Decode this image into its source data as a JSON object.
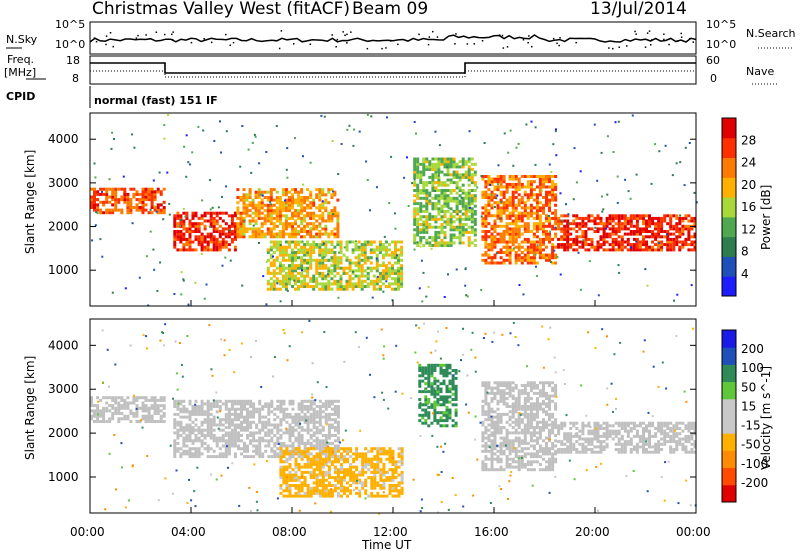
{
  "header": {
    "station": "Christmas Valley West (fitACF)",
    "beam": "Beam 09",
    "date": "13/Jul/2014"
  },
  "strip_labels": {
    "nsky": "N.Sky",
    "nsearch": "N.Search",
    "freq_line1": "Freq.",
    "freq_line2": "[MHz]",
    "nave": "Nave",
    "cpid": "CPID",
    "cpid_value": "normal (fast) 151 IF",
    "noise_ticks_left": [
      "10^5",
      "10^0"
    ],
    "noise_ticks_right": [
      "10^5",
      "10^0"
    ],
    "freq_ticks": [
      "18",
      "8"
    ],
    "nave_ticks": [
      "60",
      "0"
    ]
  },
  "colors": {
    "power_scale": [
      "#1c1cff",
      "#1f4fb8",
      "#2e7d4f",
      "#4fa84f",
      "#a8d83a",
      "#ffb000",
      "#ff7a00",
      "#ff3000",
      "#e00000"
    ],
    "velocity_scale": [
      "#1a1ae6",
      "#1f4fb8",
      "#2e8b57",
      "#5fc83a",
      "#c8c8c8",
      "#c8c8c8",
      "#ffb000",
      "#ff8c00",
      "#ff4a00",
      "#e00000"
    ],
    "ground_scatter": "#c0c0c0"
  },
  "chart_data": [
    {
      "type": "heatmap",
      "title": "Power",
      "ylabel": "Slant Range [km]",
      "xlabel": "",
      "colorbar_label": "Power [dB]",
      "colorbar_ticks": [
        "4",
        "8",
        "12",
        "16",
        "20",
        "24",
        "28"
      ],
      "ylim": [
        180,
        4600
      ],
      "yticks": [
        "1000",
        "2000",
        "3000",
        "4000"
      ],
      "xticks": [
        "00:00",
        "04:00",
        "08:00",
        "12:00",
        "16:00",
        "20:00",
        "00:00"
      ],
      "xlim_hours": [
        0,
        24
      ],
      "echo_bands": [
        {
          "t": [
            0.0,
            3.0
          ],
          "r": [
            2350,
            2900
          ],
          "level": 24
        },
        {
          "t": [
            3.3,
            5.8
          ],
          "r": [
            1500,
            2400
          ],
          "level": 26
        },
        {
          "t": [
            5.8,
            9.8
          ],
          "r": [
            1800,
            2900
          ],
          "level": 20
        },
        {
          "t": [
            7.0,
            12.3
          ],
          "r": [
            600,
            1700
          ],
          "level": 16
        },
        {
          "t": [
            12.8,
            15.2
          ],
          "r": [
            1600,
            3600
          ],
          "level": 14
        },
        {
          "t": [
            15.5,
            18.5
          ],
          "r": [
            1200,
            3200
          ],
          "level": 22
        },
        {
          "t": [
            18.5,
            24.0
          ],
          "r": [
            1500,
            2300
          ],
          "level": 26
        }
      ]
    },
    {
      "type": "heatmap",
      "title": "Velocity",
      "ylabel": "Slant Range [km]",
      "xlabel": "Time UT",
      "colorbar_label": "Velocity [m s^-1]",
      "colorbar_ticks": [
        "200",
        "100",
        "50",
        "15",
        "-15",
        "-50",
        "-100",
        "-200"
      ],
      "ylim": [
        180,
        4600
      ],
      "yticks": [
        "1000",
        "2000",
        "3000",
        "4000"
      ],
      "xticks": [
        "00:00",
        "04:00",
        "08:00",
        "12:00",
        "16:00",
        "20:00",
        "00:00"
      ],
      "xlim_hours": [
        0,
        24
      ],
      "echo_bands": [
        {
          "t": [
            0.0,
            3.0
          ],
          "r": [
            2300,
            2900
          ],
          "vel": 0
        },
        {
          "t": [
            3.3,
            9.8
          ],
          "r": [
            1500,
            2800
          ],
          "vel": 0
        },
        {
          "t": [
            7.5,
            12.3
          ],
          "r": [
            600,
            1700
          ],
          "vel": -60
        },
        {
          "t": [
            13.0,
            14.5
          ],
          "r": [
            2200,
            3600
          ],
          "vel": 60
        },
        {
          "t": [
            15.5,
            18.5
          ],
          "r": [
            1200,
            3200
          ],
          "vel": 0
        },
        {
          "t": [
            18.5,
            24.0
          ],
          "r": [
            1600,
            2300
          ],
          "vel": 0
        }
      ]
    }
  ]
}
